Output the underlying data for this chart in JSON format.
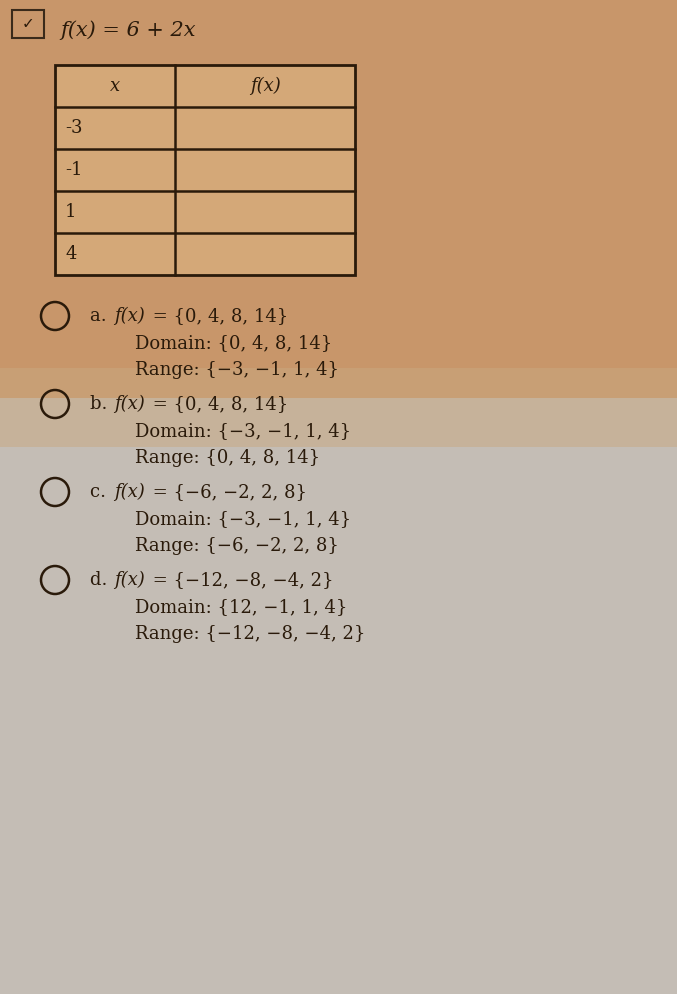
{
  "bg_top_color": "#c8966a",
  "bg_bottom_color": "#c8c0b8",
  "title": "f(x) = 6 + 2x",
  "table_x_values": [
    "-3",
    "-1",
    "1",
    "4"
  ],
  "table_col_headers": [
    "x",
    "f(x)"
  ],
  "options": [
    {
      "label": "a",
      "line1_pre": "a. ",
      "line1_italic": "f(x)",
      "line1_post": " = {0, 4, 8, 14}",
      "line2": "Domain: {0, 4, 8, 14}",
      "line3": "Range: {−3, −1, 1, 4}"
    },
    {
      "label": "b",
      "line1_pre": "b. ",
      "line1_italic": "f(x)",
      "line1_post": " = {0, 4, 8, 14}",
      "line2": "Domain: {−3, −1, 1, 4}",
      "line3": "Range: {0, 4, 8, 14}"
    },
    {
      "label": "c",
      "line1_pre": "c. ",
      "line1_italic": "f(x)",
      "line1_post": " = {−6, −2, 2, 8}",
      "line2": "Domain: {−3, −1, 1, 4}",
      "line3": "Range: {−6, −2, 2, 8}"
    },
    {
      "label": "d",
      "line1_pre": "d. ",
      "line1_italic": "f(x)",
      "line1_post": " = {−12, −8, −4, 2}",
      "line2": "Domain: {12, −1, 1, 4}",
      "line3": "Range: {−12, −8, −4, 2}"
    }
  ],
  "text_color": "#2a1a0a",
  "table_border_color": "#2a1a0a",
  "table_fill_color": "#d4a878",
  "font_size_title": 15,
  "font_size_table": 13,
  "font_size_options": 13,
  "fig_width": 6.77,
  "fig_height": 9.94,
  "dpi": 100
}
